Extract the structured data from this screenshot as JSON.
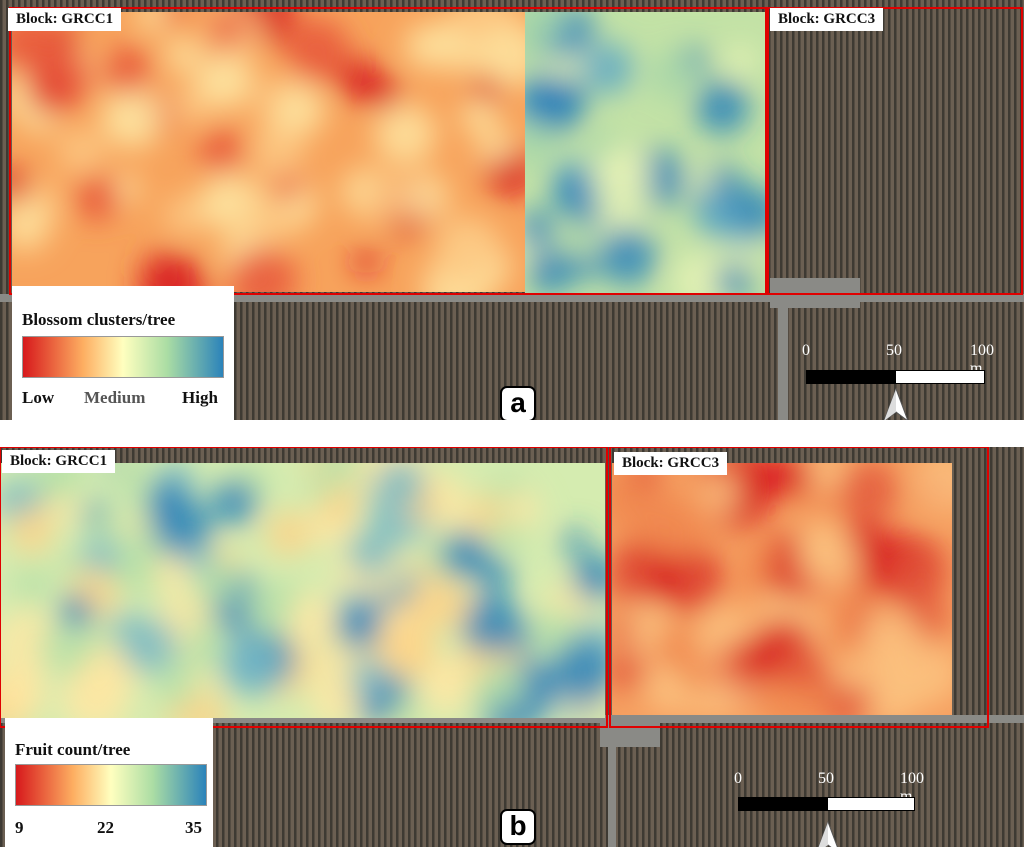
{
  "panels": [
    {
      "letter": "a",
      "blocks": [
        {
          "label": "Block: GRCC1"
        },
        {
          "label": "Block: GRCC3"
        }
      ],
      "legend": {
        "title": "Blossom clusters/tree",
        "ticks": [
          "Low",
          "Medium",
          "High"
        ]
      },
      "scale": {
        "labels": [
          "0",
          "50",
          "100 m"
        ]
      }
    },
    {
      "letter": "b",
      "blocks": [
        {
          "label": "Block: GRCC1"
        },
        {
          "label": "Block: GRCC3"
        }
      ],
      "legend": {
        "title": "Fruit count/tree",
        "ticks": [
          "9",
          "22",
          "35"
        ]
      },
      "scale": {
        "labels": [
          "0",
          "50",
          "100 m"
        ]
      }
    }
  ],
  "colors": {
    "ramp": [
      "#d7191c",
      "#fdae61",
      "#ffffbf",
      "#abdda4",
      "#2b83ba"
    ],
    "block_outline": "#e00000",
    "vineyard": "#5e5246"
  },
  "icons": {
    "north_arrow": "north-arrow-icon"
  }
}
